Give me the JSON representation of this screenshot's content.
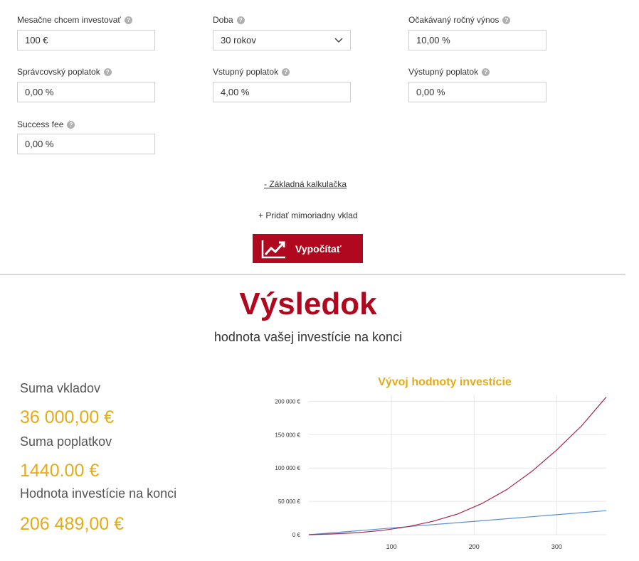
{
  "form": {
    "monthly": {
      "label": "Mesačne chcem investovať",
      "value": "100 €"
    },
    "duration": {
      "label": "Doba",
      "value": "30 rokov"
    },
    "expected_return": {
      "label": "Očakávaný ročný výnos",
      "value": "10,00 %"
    },
    "management_fee": {
      "label": "Správcovský poplatok",
      "value": "0,00 %"
    },
    "entry_fee": {
      "label": "Vstupný poplatok",
      "value": "4,00 %"
    },
    "exit_fee": {
      "label": "Výstupný poplatok",
      "value": "0,00 %"
    },
    "success_fee": {
      "label": "Success fee",
      "value": "0,00 %"
    },
    "help_glyph": "?"
  },
  "basic_calc_link": "- Základná kalkulačka",
  "add_deposit": "+ Pridať mimoriadny vklad",
  "calculate_button": {
    "label": "Vypočítať",
    "icon": "chart-trend-icon"
  },
  "result": {
    "title": "Výsledok",
    "subtitle": "hodnota vašej investície na konci",
    "deposits_label": "Suma vkladov",
    "deposits_value": "36 000,00 €",
    "fees_label": "Suma poplatkov",
    "fees_value": "1440.00 €",
    "end_label": "Hodnota investície na konci",
    "end_value": "206 489,00 €"
  },
  "colors": {
    "accent": "#b0081e",
    "gold": "#e3ac17",
    "deposits_line": "#5b8fd9",
    "value_line": "#a8264a"
  },
  "chart_data": {
    "type": "line",
    "title": "Vývoj hodnoty investície",
    "xlabel": "",
    "ylabel": "",
    "x_ticks": [
      100,
      200,
      300
    ],
    "y_ticks": [
      "0 €",
      "50 000 €",
      "100 000 €",
      "150 000 €",
      "200 000 €"
    ],
    "xlim": [
      0,
      360
    ],
    "ylim": [
      0,
      210000
    ],
    "grid": true,
    "series": [
      {
        "color": "#5b8fd9",
        "x": [
          0,
          60,
          120,
          180,
          240,
          300,
          360
        ],
        "y": [
          0,
          6000,
          12000,
          18000,
          24000,
          30000,
          36000
        ]
      },
      {
        "color": "#a8264a",
        "x": [
          0,
          30,
          60,
          90,
          120,
          150,
          180,
          210,
          240,
          270,
          300,
          330,
          360
        ],
        "y": [
          0,
          1200,
          3100,
          6600,
          12000,
          20000,
          31000,
          47000,
          68000,
          95000,
          127000,
          163000,
          206489
        ]
      }
    ]
  }
}
